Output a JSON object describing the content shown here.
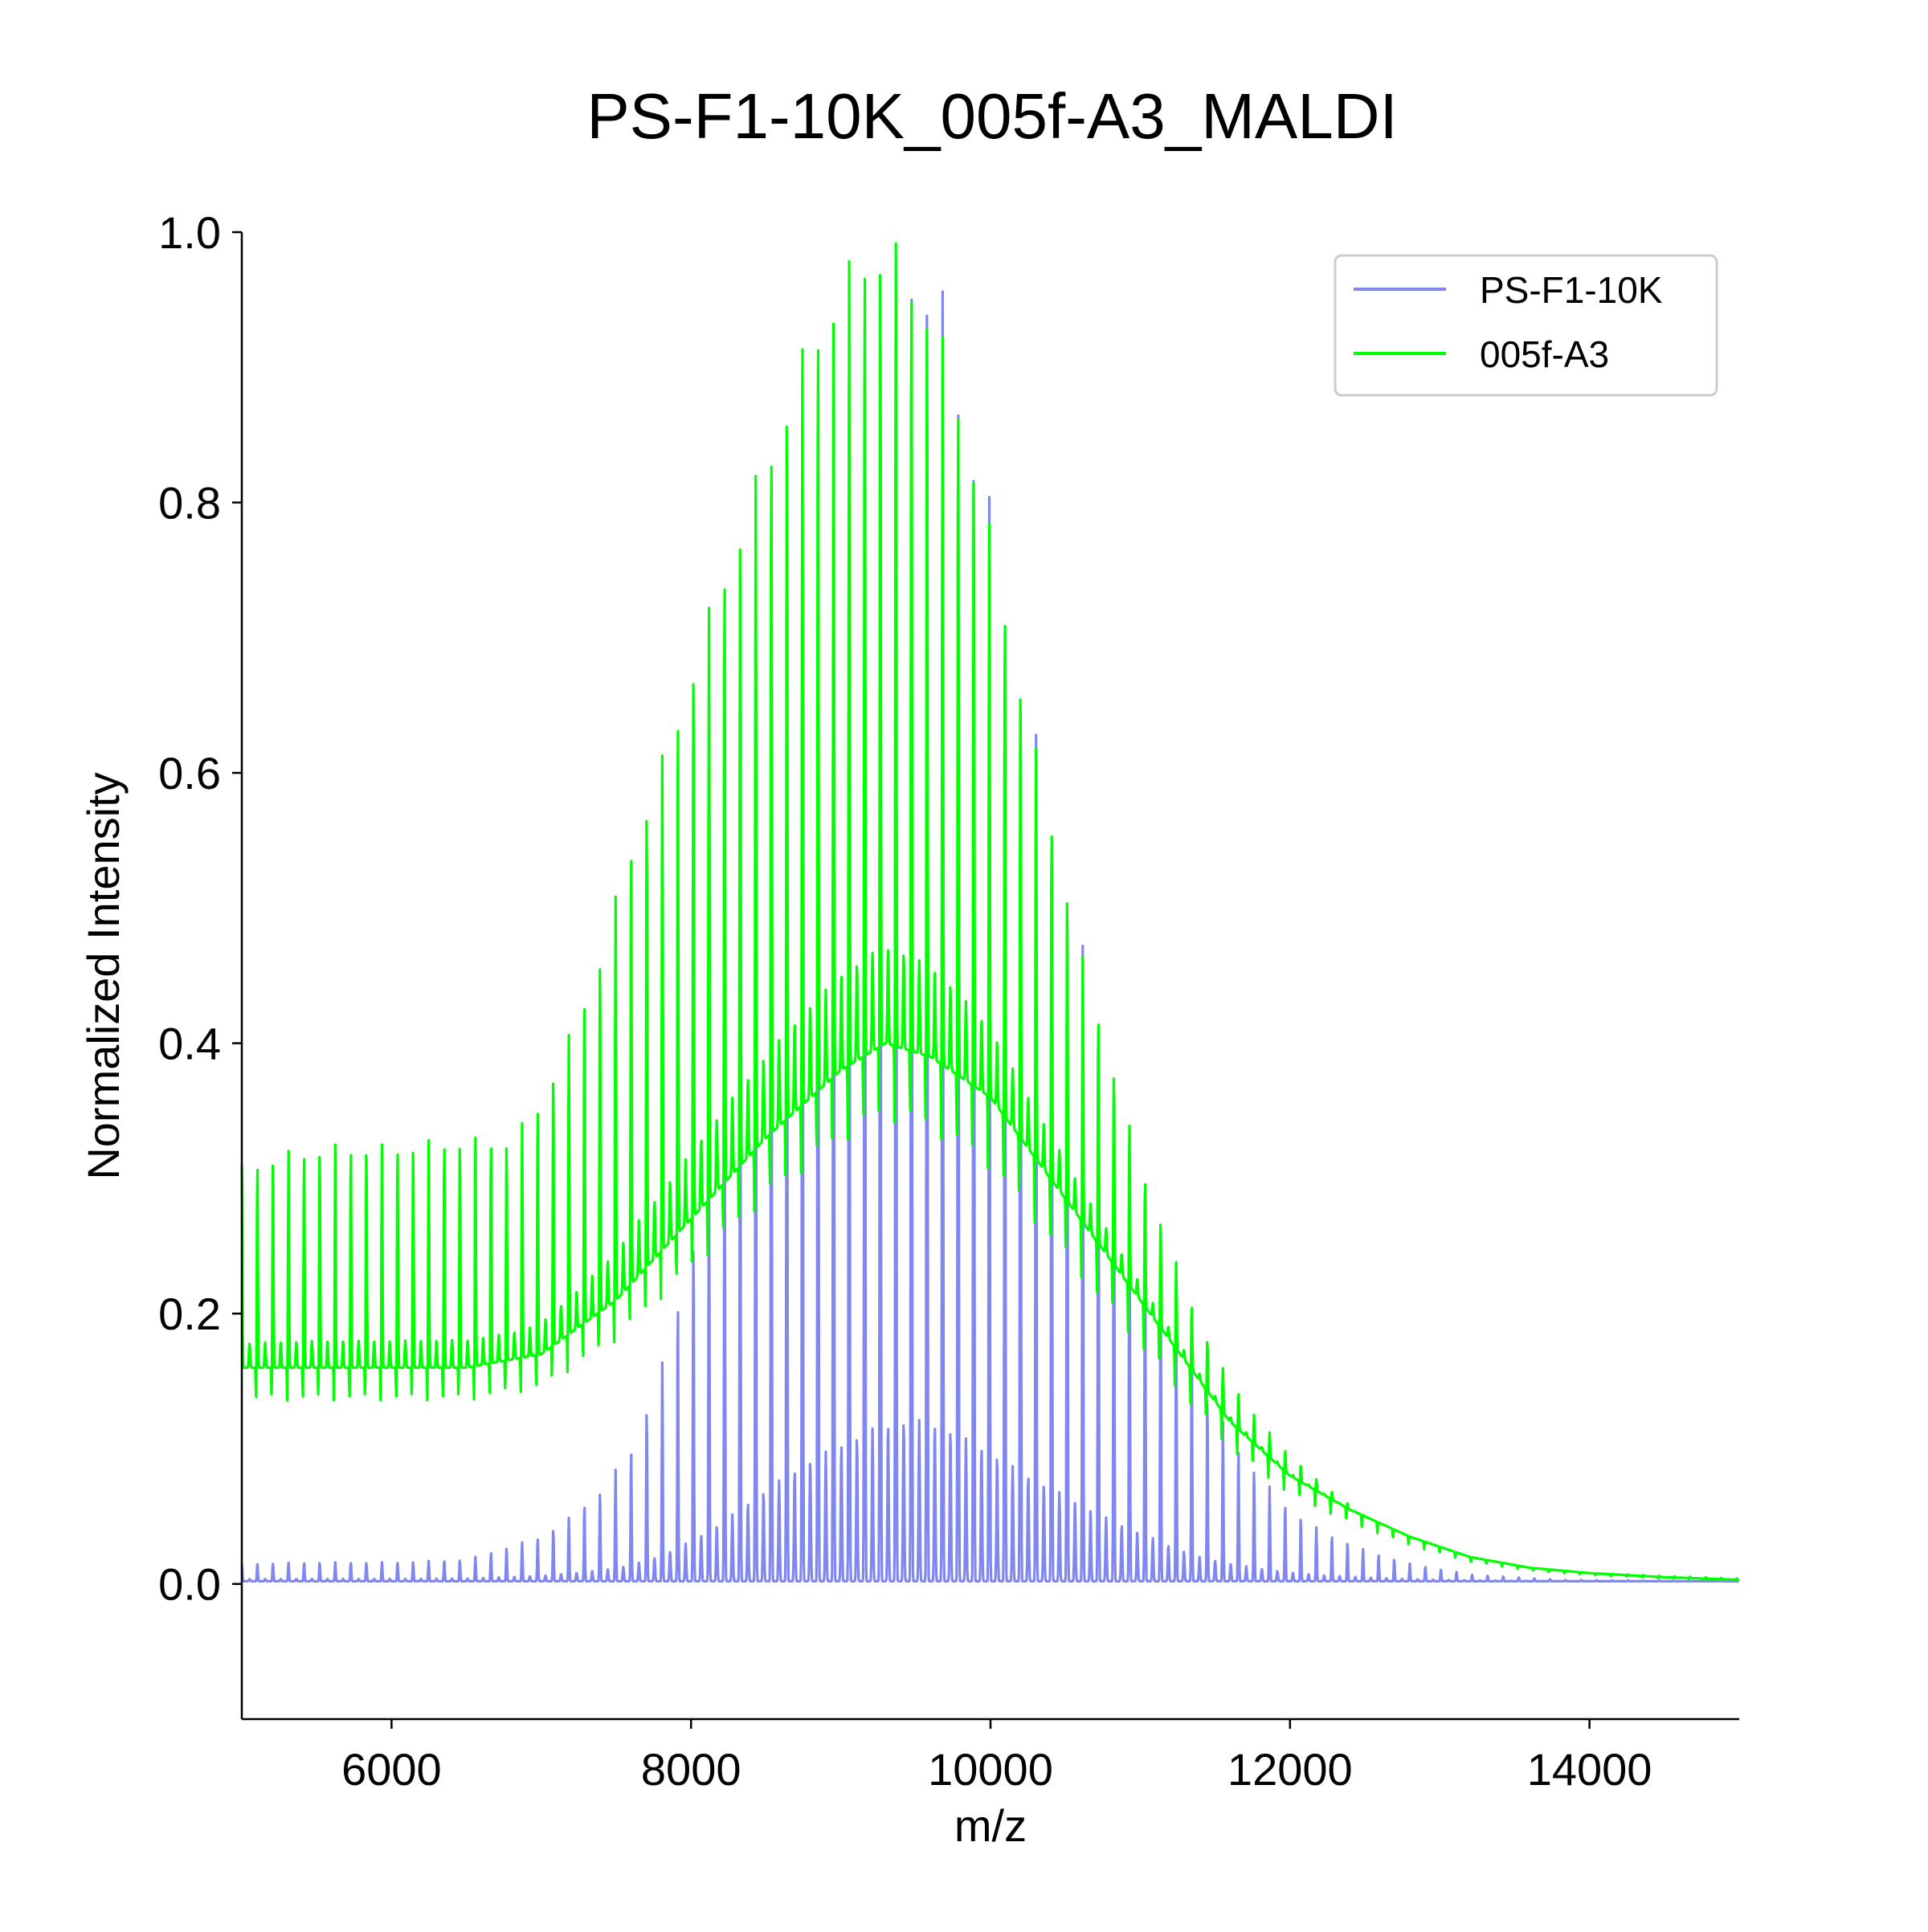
{
  "chart_data": {
    "type": "line",
    "title": "PS-F1-10K_005f-A3_MALDI",
    "xlabel": "m/z",
    "ylabel": "Normalized Intensity",
    "xlim": [
      5000,
      15000
    ],
    "ylim": [
      -0.1,
      1.0
    ],
    "xticks": [
      6000,
      8000,
      10000,
      12000,
      14000
    ],
    "xtick_labels": [
      "6000",
      "8000",
      "10000",
      "12000",
      "14000"
    ],
    "yticks": [
      0.0,
      0.2,
      0.4,
      0.6,
      0.8,
      1.0
    ],
    "ytick_labels": [
      "0.0",
      "0.2",
      "0.4",
      "0.6",
      "0.8",
      "1.0"
    ],
    "grid": false,
    "legend_position": "top-right",
    "peak_spacing": 104,
    "series": [
      {
        "name": "PS-F1-10K",
        "color": "#8088f0",
        "peak_envelope": [
          [
            5000,
            0.015
          ],
          [
            5500,
            0.016
          ],
          [
            6000,
            0.016
          ],
          [
            6500,
            0.018
          ],
          [
            7000,
            0.035
          ],
          [
            7200,
            0.05
          ],
          [
            7400,
            0.07
          ],
          [
            7600,
            0.1
          ],
          [
            7700,
            0.13
          ],
          [
            7800,
            0.16
          ],
          [
            8000,
            0.25
          ],
          [
            8200,
            0.36
          ],
          [
            8400,
            0.5
          ],
          [
            8600,
            0.63
          ],
          [
            8800,
            0.75
          ],
          [
            9000,
            0.85
          ],
          [
            9200,
            0.94
          ],
          [
            9400,
            0.99
          ],
          [
            9500,
            1.0
          ],
          [
            9600,
            0.98
          ],
          [
            9700,
            0.95
          ],
          [
            9800,
            0.9
          ],
          [
            10000,
            0.8
          ],
          [
            10200,
            0.68
          ],
          [
            10400,
            0.58
          ],
          [
            10600,
            0.48
          ],
          [
            10800,
            0.38
          ],
          [
            11000,
            0.3
          ],
          [
            11200,
            0.22
          ],
          [
            11400,
            0.15
          ],
          [
            11600,
            0.11
          ],
          [
            11800,
            0.08
          ],
          [
            12000,
            0.055
          ],
          [
            12200,
            0.04
          ],
          [
            12500,
            0.025
          ],
          [
            12800,
            0.015
          ],
          [
            13200,
            0.007
          ],
          [
            13800,
            0.003
          ],
          [
            15000,
            0.002
          ]
        ],
        "baseline": [
          [
            5000,
            0.002
          ],
          [
            15000,
            0.002
          ]
        ]
      },
      {
        "name": "005f-A3",
        "color": "#00ff00",
        "peak_envelope": [
          [
            5000,
            0.31
          ],
          [
            5300,
            0.32
          ],
          [
            5600,
            0.325
          ],
          [
            6000,
            0.325
          ],
          [
            6400,
            0.33
          ],
          [
            6800,
            0.33
          ],
          [
            7000,
            0.36
          ],
          [
            7200,
            0.41
          ],
          [
            7400,
            0.47
          ],
          [
            7600,
            0.55
          ],
          [
            7800,
            0.61
          ],
          [
            8000,
            0.68
          ],
          [
            8200,
            0.75
          ],
          [
            8400,
            0.81
          ],
          [
            8600,
            0.87
          ],
          [
            8800,
            0.93
          ],
          [
            9000,
            0.97
          ],
          [
            9200,
            1.0
          ],
          [
            9400,
            0.99
          ],
          [
            9500,
            0.97
          ],
          [
            9600,
            0.95
          ],
          [
            9800,
            0.88
          ],
          [
            10000,
            0.78
          ],
          [
            10200,
            0.67
          ],
          [
            10400,
            0.57
          ],
          [
            10600,
            0.47
          ],
          [
            10800,
            0.39
          ],
          [
            11000,
            0.31
          ],
          [
            11200,
            0.25
          ],
          [
            11400,
            0.19
          ],
          [
            11600,
            0.15
          ],
          [
            11800,
            0.12
          ],
          [
            12000,
            0.095
          ],
          [
            12200,
            0.075
          ],
          [
            12500,
            0.05
          ],
          [
            12800,
            0.035
          ],
          [
            13200,
            0.02
          ],
          [
            13600,
            0.012
          ],
          [
            14000,
            0.008
          ],
          [
            15000,
            0.004
          ]
        ],
        "baseline": [
          [
            5000,
            0.16
          ],
          [
            5500,
            0.16
          ],
          [
            6000,
            0.16
          ],
          [
            6500,
            0.16
          ],
          [
            7000,
            0.17
          ],
          [
            7500,
            0.21
          ],
          [
            8000,
            0.27
          ],
          [
            8500,
            0.33
          ],
          [
            9000,
            0.38
          ],
          [
            9300,
            0.4
          ],
          [
            9600,
            0.39
          ],
          [
            10000,
            0.36
          ],
          [
            10400,
            0.3
          ],
          [
            10800,
            0.24
          ],
          [
            11200,
            0.18
          ],
          [
            11600,
            0.12
          ],
          [
            12000,
            0.08
          ],
          [
            12400,
            0.055
          ],
          [
            12800,
            0.035
          ],
          [
            13200,
            0.02
          ],
          [
            13600,
            0.012
          ],
          [
            14000,
            0.008
          ],
          [
            14500,
            0.005
          ],
          [
            15000,
            0.003
          ]
        ]
      }
    ]
  }
}
